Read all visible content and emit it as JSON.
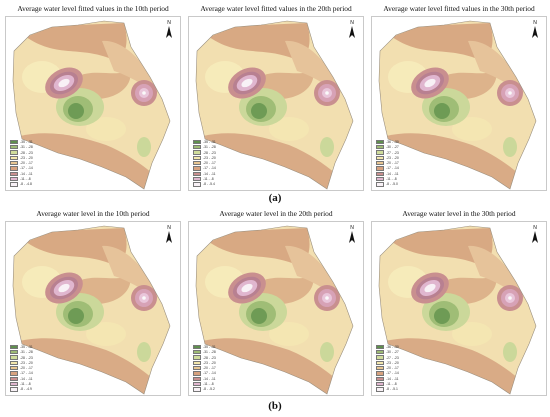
{
  "row_a": {
    "caption": "(a)",
    "panels": [
      {
        "title": "Average water level fitted values in the 10th period"
      },
      {
        "title": "Average water level fitted values in the 20th period"
      },
      {
        "title": "Average water level fitted values in the 30th period"
      }
    ]
  },
  "row_b": {
    "caption": "(b)",
    "panels": [
      {
        "title": "Average water level in the 10th period"
      },
      {
        "title": "Average water level in the 20th period"
      },
      {
        "title": "Average water level in the 30th period"
      }
    ]
  },
  "north_label": "N",
  "legend": {
    "colors": [
      "#5f8f4e",
      "#9dbb74",
      "#cfdc9b",
      "#f3e7ad",
      "#e8c692",
      "#d7a27f",
      "#c98f8f",
      "#e0b6cf",
      "#f8f1f6"
    ],
    "ranges_by_panel": [
      [
        "-35 - -31",
        "-31 - -28",
        "-28 - -23",
        "-23 - -20",
        "-20 - -17",
        "-17 - -14",
        "-14 - -11",
        "-11 - -8",
        "-8 - -4.8"
      ],
      [
        "-35 - -31",
        "-31 - -28",
        "-28 - -23",
        "-23 - -20",
        "-20 - -17",
        "-17 - -14",
        "-14 - -11",
        "-11 - -8",
        "-8 - -5.4"
      ],
      [
        "-36 - -30",
        "-30 - -27",
        "-27 - -23",
        "-23 - -20",
        "-20 - -17",
        "-17 - -14",
        "-14 - -11",
        "-11 - -8",
        "-8 - -5.0"
      ],
      [
        "-35 - -31",
        "-31 - -28",
        "-28 - -23",
        "-23 - -20",
        "-20 - -17",
        "-17 - -14",
        "-14 - -11",
        "-11 - -8",
        "-8 - -4.9"
      ],
      [
        "-35 - -31",
        "-31 - -28",
        "-28 - -23",
        "-23 - -20",
        "-20 - -17",
        "-17 - -14",
        "-14 - -11",
        "-11 - -8",
        "-8 - -5.2"
      ],
      [
        "-36 - -30",
        "-30 - -27",
        "-27 - -23",
        "-23 - -20",
        "-20 - -17",
        "-17 - -14",
        "-14 - -11",
        "-11 - -8",
        "-8 - -5.1"
      ]
    ]
  }
}
